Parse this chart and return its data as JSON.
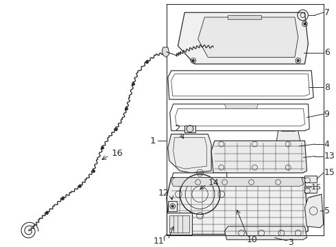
{
  "background_color": "#ffffff",
  "line_color": "#2a2a2a",
  "fontsize": 8.5,
  "leader_lw": 0.7,
  "part_lw": 0.8
}
